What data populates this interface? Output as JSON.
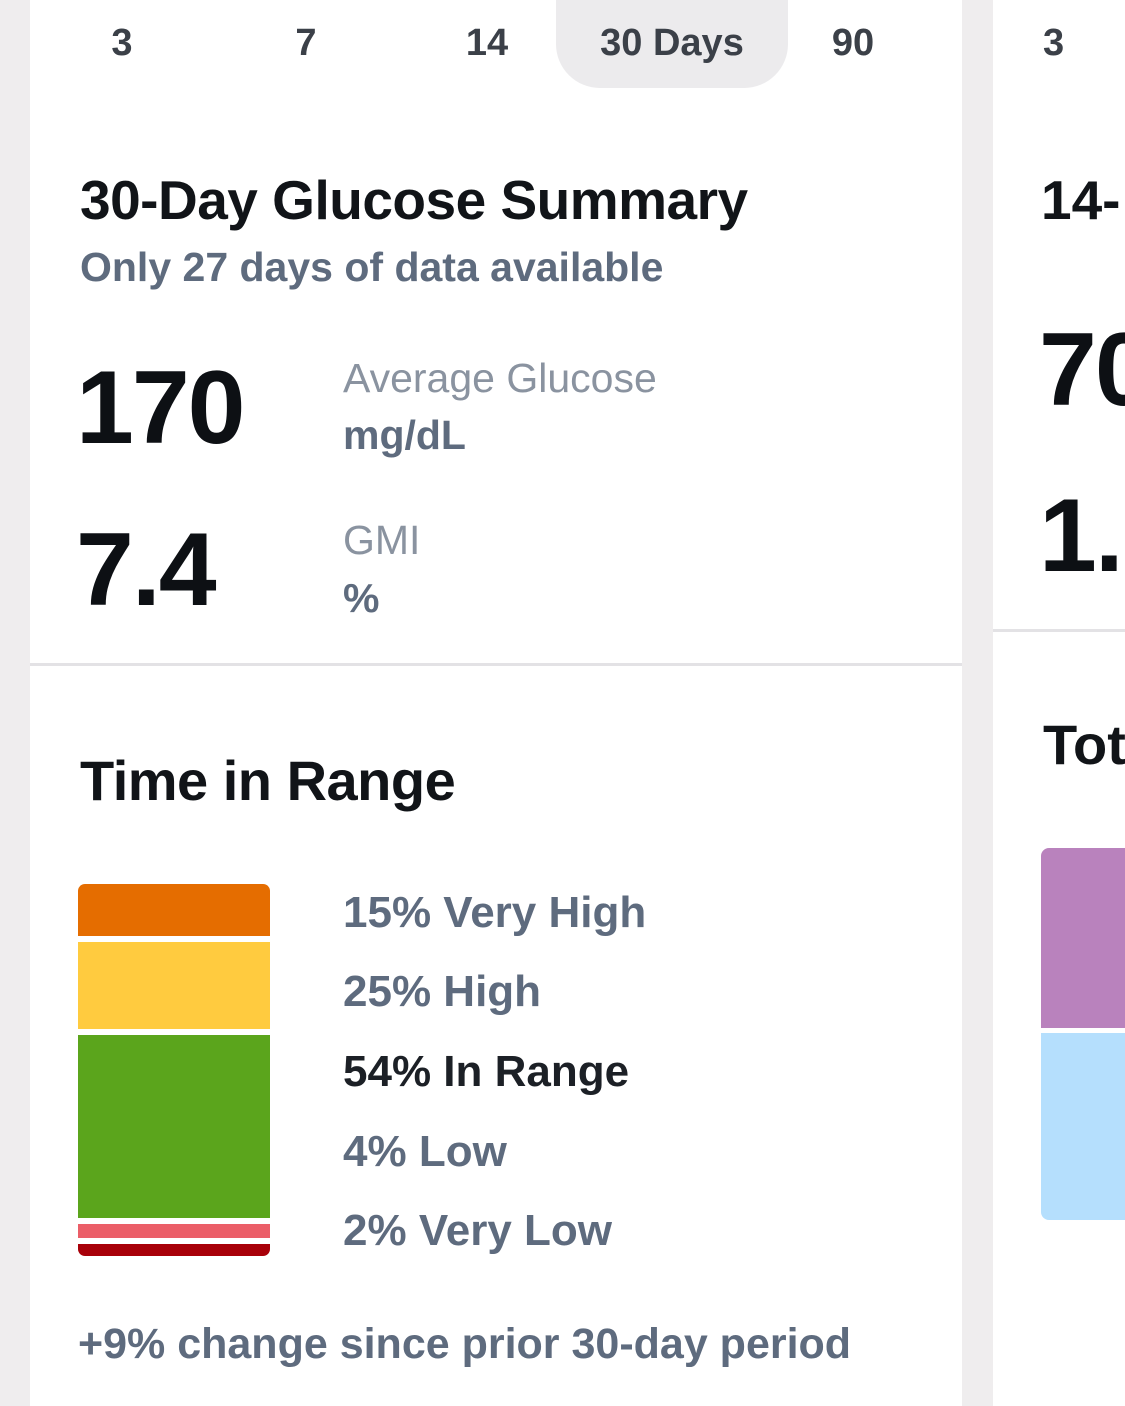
{
  "range_tabs": [
    {
      "label": "3",
      "active": false
    },
    {
      "label": "7",
      "active": false
    },
    {
      "label": "14",
      "active": false
    },
    {
      "label": "30 Days",
      "active": true
    },
    {
      "label": "90",
      "active": false
    }
  ],
  "summary": {
    "title": "30-Day Glucose Summary",
    "subtitle": "Only 27 days of data available",
    "average_glucose": {
      "value": "170",
      "label": "Average Glucose",
      "unit": "mg/dL"
    },
    "gmi": {
      "value": "7.4",
      "label": "GMI",
      "unit": "%"
    }
  },
  "time_in_range": {
    "title": "Time in Range",
    "segments": [
      {
        "key": "very_high",
        "percent": 15,
        "text": "15% Very High",
        "color": "#e56d00"
      },
      {
        "key": "high",
        "percent": 25,
        "text": "25% High",
        "color": "#ffcb3f"
      },
      {
        "key": "in_range",
        "percent": 54,
        "text": "54% In Range",
        "color": "#5ba51c"
      },
      {
        "key": "low",
        "percent": 4,
        "text": "4% Low",
        "color": "#eb5e68"
      },
      {
        "key": "very_low",
        "percent": 2,
        "text": "2% Very Low",
        "color": "#a80009"
      }
    ],
    "change_note": "+9% change since prior 30-day period"
  },
  "peek_card": {
    "tab_label": "3",
    "title": "14-",
    "value_1": "70",
    "value_2": "1.",
    "section_title": "Tot",
    "segments": [
      {
        "color": "#b982bd",
        "percent": 49
      },
      {
        "color": "#b5dffd",
        "percent": 51
      }
    ]
  }
}
